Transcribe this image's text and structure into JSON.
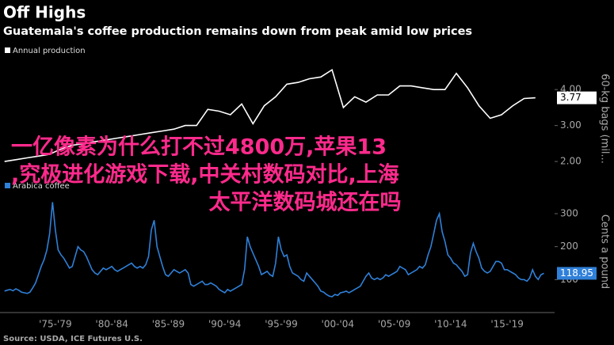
{
  "chart_data": [
    {
      "type": "line",
      "title": "Off Highs",
      "subtitle": "Guatemala's coffee production remains down from peak amid low prices",
      "y_label": "60-kg bags (mil...",
      "x": [
        1973,
        1974,
        1975,
        1976,
        1977,
        1978,
        1979,
        1980,
        1981,
        1982,
        1983,
        1984,
        1985,
        1986,
        1987,
        1988,
        1989,
        1990,
        1991,
        1992,
        1993,
        1994,
        1995,
        1996,
        1997,
        1998,
        1999,
        2000,
        2001,
        2002,
        2003,
        2004,
        2005,
        2006,
        2007,
        2008,
        2009,
        2010,
        2011,
        2012,
        2013,
        2014,
        2015,
        2016,
        2017,
        2018,
        2019,
        2020
      ],
      "series": [
        {
          "name": "Annual production",
          "color": "#ffffff",
          "values": [
            2.0,
            2.05,
            2.1,
            2.15,
            2.2,
            2.35,
            2.45,
            2.5,
            2.55,
            2.6,
            2.65,
            2.7,
            2.75,
            2.8,
            2.85,
            2.9,
            3.0,
            3.0,
            3.45,
            3.4,
            3.3,
            3.6,
            3.05,
            3.55,
            3.8,
            4.15,
            4.2,
            4.3,
            4.35,
            4.55,
            3.5,
            3.8,
            3.65,
            3.85,
            3.85,
            4.1,
            4.1,
            4.05,
            4.0,
            4.0,
            4.45,
            4.05,
            3.55,
            3.2,
            3.3,
            3.55,
            3.75,
            3.77
          ]
        }
      ],
      "xlim": [
        1972.6,
        2021.7
      ],
      "ylim": [
        1.65,
        4.73
      ],
      "yticks": [
        {
          "value": 2,
          "label": "2.00"
        },
        {
          "value": 3,
          "label": "3.00"
        },
        {
          "value": 4,
          "label": "4.00"
        }
      ]
    },
    {
      "type": "line",
      "y_label": "Cents a pound",
      "source": "Source: USDA, ICE Futures U.S.",
      "x": [
        1973,
        1973.25,
        1973.5,
        1973.75,
        1974,
        1974.25,
        1974.5,
        1974.75,
        1975,
        1975.25,
        1975.5,
        1975.75,
        1976,
        1976.25,
        1976.5,
        1976.75,
        1977,
        1977.25,
        1977.5,
        1977.75,
        1978,
        1978.25,
        1978.5,
        1978.75,
        1979,
        1979.25,
        1979.5,
        1979.75,
        1980,
        1980.25,
        1980.5,
        1980.75,
        1981,
        1981.25,
        1981.5,
        1981.75,
        1982,
        1982.25,
        1982.5,
        1982.75,
        1983,
        1983.25,
        1983.5,
        1983.75,
        1984,
        1984.25,
        1984.5,
        1984.75,
        1985,
        1985.25,
        1985.5,
        1985.75,
        1986,
        1986.25,
        1986.5,
        1986.75,
        1987,
        1987.25,
        1987.5,
        1987.75,
        1988,
        1988.25,
        1988.5,
        1988.75,
        1989,
        1989.25,
        1989.5,
        1989.75,
        1990,
        1990.25,
        1990.5,
        1990.75,
        1991,
        1991.25,
        1991.5,
        1991.75,
        1992,
        1992.25,
        1992.5,
        1992.75,
        1993,
        1993.25,
        1993.5,
        1993.75,
        1994,
        1994.25,
        1994.5,
        1994.75,
        1995,
        1995.25,
        1995.5,
        1995.75,
        1996,
        1996.25,
        1996.5,
        1996.75,
        1997,
        1997.25,
        1997.5,
        1997.75,
        1998,
        1998.25,
        1998.5,
        1998.75,
        1999,
        1999.25,
        1999.5,
        1999.75,
        2000,
        2000.25,
        2000.5,
        2000.75,
        2001,
        2001.25,
        2001.5,
        2001.75,
        2002,
        2002.25,
        2002.5,
        2002.75,
        2003,
        2003.25,
        2003.5,
        2003.75,
        2004,
        2004.25,
        2004.5,
        2004.75,
        2005,
        2005.25,
        2005.5,
        2005.75,
        2006,
        2006.25,
        2006.5,
        2006.75,
        2007,
        2007.25,
        2007.5,
        2007.75,
        2008,
        2008.25,
        2008.5,
        2008.75,
        2009,
        2009.25,
        2009.5,
        2009.75,
        2010,
        2010.25,
        2010.5,
        2010.75,
        2011,
        2011.25,
        2011.5,
        2011.75,
        2012,
        2012.25,
        2012.5,
        2012.75,
        2013,
        2013.25,
        2013.5,
        2013.75,
        2014,
        2014.25,
        2014.5,
        2014.75,
        2015,
        2015.25,
        2015.5,
        2015.75,
        2016,
        2016.25,
        2016.5,
        2016.75,
        2017,
        2017.25,
        2017.5,
        2017.75,
        2018,
        2018.25,
        2018.5,
        2018.75,
        2019,
        2019.25,
        2019.5,
        2019.75,
        2020,
        2020.25,
        2020.5,
        2020.75
      ],
      "series": [
        {
          "name": "Arabica coffee",
          "color": "#2f80d8",
          "values": [
            65,
            68,
            70,
            66,
            72,
            68,
            62,
            60,
            58,
            62,
            75,
            90,
            115,
            140,
            160,
            190,
            240,
            335,
            250,
            190,
            175,
            165,
            150,
            135,
            140,
            170,
            200,
            190,
            185,
            170,
            150,
            130,
            120,
            115,
            125,
            135,
            130,
            135,
            140,
            130,
            125,
            130,
            135,
            140,
            145,
            150,
            140,
            135,
            140,
            135,
            145,
            170,
            250,
            280,
            200,
            170,
            140,
            115,
            110,
            120,
            130,
            125,
            120,
            125,
            130,
            120,
            85,
            80,
            85,
            90,
            95,
            85,
            85,
            90,
            85,
            80,
            70,
            65,
            60,
            70,
            65,
            70,
            75,
            80,
            85,
            130,
            230,
            200,
            180,
            160,
            140,
            115,
            120,
            125,
            115,
            110,
            150,
            230,
            190,
            170,
            175,
            140,
            120,
            115,
            110,
            100,
            95,
            120,
            110,
            100,
            90,
            80,
            65,
            62,
            55,
            50,
            48,
            55,
            52,
            60,
            62,
            65,
            60,
            65,
            70,
            75,
            80,
            95,
            110,
            120,
            105,
            100,
            105,
            100,
            105,
            115,
            110,
            115,
            120,
            125,
            140,
            135,
            130,
            115,
            120,
            125,
            130,
            140,
            135,
            145,
            175,
            200,
            240,
            280,
            300,
            245,
            215,
            175,
            165,
            150,
            145,
            135,
            125,
            110,
            115,
            180,
            210,
            185,
            165,
            135,
            125,
            120,
            125,
            140,
            155,
            155,
            150,
            130,
            130,
            125,
            120,
            115,
            105,
            100,
            100,
            95,
            105,
            130,
            110,
            100,
            115,
            118.95
          ]
        }
      ],
      "xlim": [
        1972.6,
        2021.7
      ],
      "ylim": [
        0,
        372
      ],
      "yticks": [
        100,
        200,
        300
      ],
      "xticks": [
        {
          "value": 1977.5,
          "label": "'75-'79"
        },
        {
          "value": 1982.5,
          "label": "'80-'84"
        },
        {
          "value": 1987.5,
          "label": "'85-'89"
        },
        {
          "value": 1992.5,
          "label": "'90-'94"
        },
        {
          "value": 1997.5,
          "label": "'95-'99"
        },
        {
          "value": 2002.5,
          "label": "'00-'04"
        },
        {
          "value": 2007.5,
          "label": "'05-'09"
        },
        {
          "value": 2012.5,
          "label": "'10-'14"
        },
        {
          "value": 2017.5,
          "label": "'15-'19"
        }
      ]
    }
  ],
  "annotations": [
    "一亿像素为什么打不过4800万,苹果13",
    ",究极进化游戏下载,中关村数码对比,上海",
    "太平洋数码城还在吗"
  ]
}
